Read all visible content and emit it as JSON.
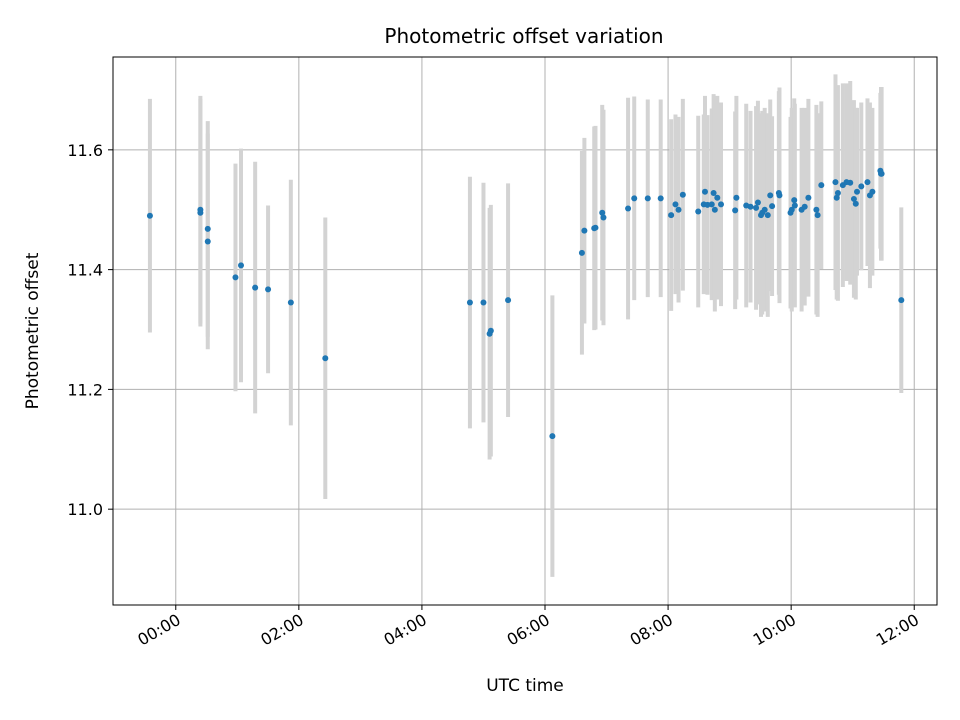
{
  "chart_data": {
    "type": "scatter",
    "title": "Photometric offset variation",
    "xlabel": "UTC time",
    "ylabel": "Photometric offset",
    "x_unit": "hours UTC",
    "xlim": [
      -1.02,
      12.37
    ],
    "ylim": [
      10.84,
      11.755
    ],
    "x_ticks": [
      0,
      2,
      4,
      6,
      8,
      10,
      12
    ],
    "x_tick_labels": [
      "00:00",
      "02:00",
      "04:00",
      "06:00",
      "08:00",
      "10:00",
      "12:00"
    ],
    "y_ticks": [
      11.0,
      11.2,
      11.4,
      11.6
    ],
    "y_tick_labels": [
      "11.0",
      "11.2",
      "11.4",
      "11.6"
    ],
    "grid": true,
    "legend": "none",
    "colors": {
      "points": "#1f77b4",
      "errorbars": "#d3d3d3",
      "grid": "#b0b0b0"
    },
    "series": [
      {
        "x": [
          -0.42,
          0.4,
          0.4,
          0.52,
          0.52,
          0.97,
          1.06,
          1.29,
          1.5,
          1.87,
          2.43,
          4.78,
          5.0,
          5.1,
          5.12,
          5.4,
          6.12,
          6.6,
          6.64,
          6.8,
          6.82,
          6.93,
          6.95,
          7.35,
          7.45,
          7.67,
          7.88,
          8.05,
          8.12,
          8.17,
          8.24,
          8.49,
          8.58,
          8.6,
          8.64,
          8.71,
          8.74,
          8.76,
          8.8,
          8.86,
          9.09,
          9.11,
          9.27,
          9.34,
          9.43,
          9.46,
          9.51,
          9.53,
          9.57,
          9.62,
          9.66,
          9.69,
          9.8,
          9.81,
          9.99,
          10.01,
          10.05,
          10.06,
          10.17,
          10.22,
          10.28,
          10.41,
          10.43,
          10.49,
          10.72,
          10.74,
          10.76,
          10.84,
          10.9,
          10.96,
          11.02,
          11.05,
          11.07,
          11.14,
          11.24,
          11.28,
          11.32,
          11.45,
          11.46,
          11.47,
          11.79
        ],
        "y": [
          11.49,
          11.5,
          11.495,
          11.468,
          11.447,
          11.387,
          11.407,
          11.37,
          11.367,
          11.345,
          11.252,
          11.345,
          11.345,
          11.293,
          11.298,
          11.349,
          11.122,
          11.428,
          11.465,
          11.469,
          11.47,
          11.495,
          11.487,
          11.502,
          11.519,
          11.519,
          11.519,
          11.491,
          11.509,
          11.5,
          11.525,
          11.497,
          11.509,
          11.53,
          11.508,
          11.509,
          11.528,
          11.5,
          11.52,
          11.509,
          11.499,
          11.52,
          11.507,
          11.505,
          11.503,
          11.512,
          11.491,
          11.495,
          11.5,
          11.491,
          11.524,
          11.506,
          11.528,
          11.524,
          11.495,
          11.5,
          11.516,
          11.507,
          11.5,
          11.505,
          11.52,
          11.5,
          11.491,
          11.541,
          11.546,
          11.52,
          11.528,
          11.541,
          11.546,
          11.545,
          11.518,
          11.51,
          11.53,
          11.539,
          11.546,
          11.524,
          11.53,
          11.565,
          11.56,
          11.56,
          11.349
        ],
        "yerr": [
          0.195,
          0.19,
          0.19,
          0.18,
          0.18,
          0.19,
          0.195,
          0.21,
          0.14,
          0.205,
          0.235,
          0.21,
          0.2,
          0.21,
          0.21,
          0.195,
          0.235,
          0.17,
          0.155,
          0.17,
          0.17,
          0.18,
          0.18,
          0.185,
          0.17,
          0.165,
          0.165,
          0.16,
          0.15,
          0.155,
          0.16,
          0.16,
          0.15,
          0.16,
          0.15,
          0.16,
          0.165,
          0.17,
          0.17,
          0.17,
          0.165,
          0.17,
          0.17,
          0.16,
          0.17,
          0.17,
          0.17,
          0.17,
          0.17,
          0.17,
          0.16,
          0.15,
          0.17,
          0.18,
          0.16,
          0.17,
          0.17,
          0.17,
          0.17,
          0.165,
          0.165,
          0.175,
          0.17,
          0.14,
          0.18,
          0.17,
          0.18,
          0.17,
          0.165,
          0.17,
          0.165,
          0.16,
          0.14,
          0.14,
          0.14,
          0.155,
          0.14,
          0.13,
          0.145,
          0.145,
          0.155
        ]
      }
    ]
  }
}
